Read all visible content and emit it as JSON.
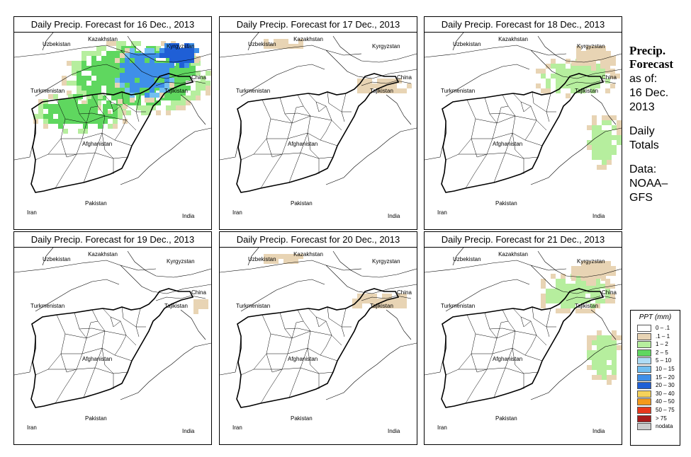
{
  "panels": [
    {
      "title": "Daily Precip. Forecast for  16 Dec., 2013",
      "intensity": 4
    },
    {
      "title": "Daily Precip. Forecast for  17 Dec., 2013",
      "intensity": 1
    },
    {
      "title": "Daily Precip. Forecast for  18 Dec., 2013",
      "intensity": 2
    },
    {
      "title": "Daily Precip. Forecast for  19 Dec., 2013",
      "intensity": 0
    },
    {
      "title": "Daily Precip. Forecast for  20 Dec., 2013",
      "intensity": 1
    },
    {
      "title": "Daily Precip. Forecast for  21 Dec., 2013",
      "intensity": 2
    }
  ],
  "countries": [
    "Kazakhstan",
    "Uzbekistan",
    "Kyrgyzstan",
    "China",
    "Turkmenistan",
    "Tajikistan",
    "Afghanistan",
    "Iran",
    "Pakistan",
    "India"
  ],
  "sidebar": {
    "title_line1": "Precip.",
    "title_line2": "Forecast",
    "as_of": "as of:",
    "date_line1": "16 Dec.",
    "date_line2": "2013",
    "daily": "Daily",
    "totals": "Totals",
    "data_label": "Data:",
    "source_line1": "NOAA–",
    "source_line2": "GFS"
  },
  "legend": {
    "title": "PPT (mm)",
    "items": [
      {
        "label": "0 – .1",
        "color": "#ffffff"
      },
      {
        "label": ".1 – 1",
        "color": "#e8d4b4"
      },
      {
        "label": "1 – 2",
        "color": "#b6ee9e"
      },
      {
        "label": "2 – 5",
        "color": "#5fd75f"
      },
      {
        "label": "5 – 10",
        "color": "#aedcf5"
      },
      {
        "label": "10 – 15",
        "color": "#72bff0"
      },
      {
        "label": "15 – 20",
        "color": "#3f8fe8"
      },
      {
        "label": "20 – 30",
        "color": "#1f5fd6"
      },
      {
        "label": "30 – 40",
        "color": "#f5d25a"
      },
      {
        "label": "40 – 50",
        "color": "#f59a1c"
      },
      {
        "label": "50 – 75",
        "color": "#e8381c"
      },
      {
        "label": "> 75",
        "color": "#a81c1c"
      },
      {
        "label": "nodata",
        "color": "#cccccc"
      }
    ]
  }
}
